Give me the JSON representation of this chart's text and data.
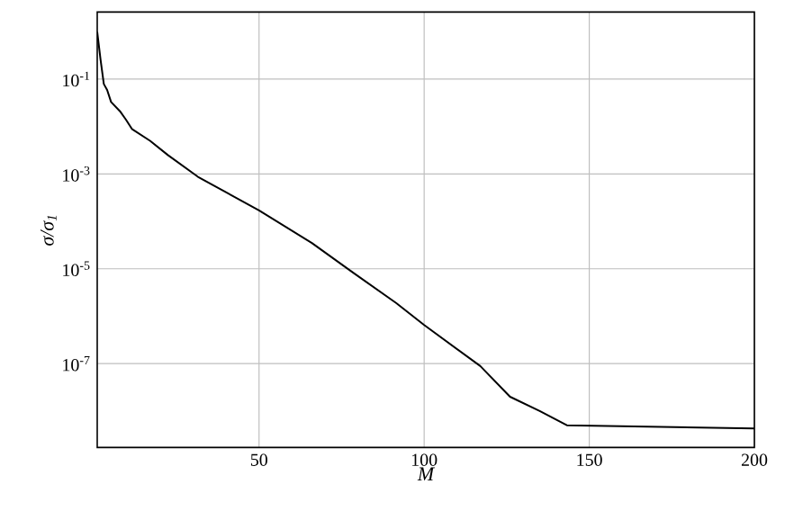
{
  "chart_data": {
    "type": "line",
    "xlabel": "M",
    "ylabel": "σ/σ$_{1}$",
    "log": "y",
    "grid": true,
    "xlim": [
      1,
      200
    ],
    "ylim": [
      1.7e-09,
      2.6
    ],
    "xticks": [
      50,
      100,
      150,
      200
    ],
    "yticks": [
      {
        "value": 0.1,
        "label": "10$^{-1}$"
      },
      {
        "value": 0.001,
        "label": "10$^{-3}$"
      },
      {
        "value": 1e-05,
        "label": "10$^{-5}$"
      },
      {
        "value": 1e-07,
        "label": "10$^{-7}$"
      }
    ],
    "series": [
      {
        "color": "#000000",
        "x": [
          1,
          2,
          3,
          4,
          5.2,
          7.9,
          9.7,
          11.5,
          17,
          22.4,
          31.5,
          50,
          66,
          78.7,
          91.5,
          100,
          117,
          126,
          135,
          143.2,
          200
        ],
        "values": [
          1,
          0.26,
          0.079,
          0.059,
          0.033,
          0.021,
          0.014,
          0.0089,
          0.005,
          0.0025,
          0.00087,
          0.00017,
          3.5e-05,
          8.1e-06,
          1.9e-06,
          6.5e-07,
          8.9e-08,
          2e-08,
          1e-08,
          5e-09,
          4.3e-09
        ]
      }
    ]
  }
}
